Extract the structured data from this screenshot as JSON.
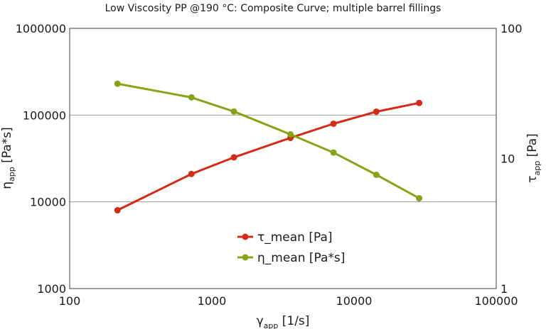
{
  "chart_data": {
    "type": "line",
    "title": "Low Viscosity PP @190 °C: Composite Curve; multiple barrel fillings",
    "x_label": {
      "symbol": "γ",
      "subscript": "app",
      "unit": " [1/s]"
    },
    "y_left_label": {
      "symbol": "η",
      "subscript": "app",
      "unit": " [Pa*s]"
    },
    "y_right_label": {
      "symbol": "τ",
      "subscript": "app",
      "unit": " [Pa]"
    },
    "x_scale": "log",
    "y_left_scale": "log",
    "y_right_scale": "log",
    "xlim": [
      100,
      100000
    ],
    "y_left_lim": [
      1000,
      1000000
    ],
    "y_right_lim": [
      1,
      100
    ],
    "x_ticks": [
      "100",
      "1000",
      "10000",
      "100000"
    ],
    "y_left_ticks": [
      "1000",
      "10000",
      "100000",
      "1000000"
    ],
    "y_right_ticks": [
      "1",
      "10",
      "100"
    ],
    "grid": "horizontal",
    "legend_position": "center-bottom",
    "series": [
      {
        "name": "τ_mean [Pa]",
        "axis": "right",
        "color": "#d42a16",
        "x": [
          217,
          718,
          1430,
          3570,
          7170,
          14350,
          28700
        ],
        "y": [
          4.0,
          7.6,
          10.2,
          14.4,
          18.5,
          22.9,
          26.7
        ]
      },
      {
        "name": "η_mean [Pa*s]",
        "axis": "left",
        "color": "#86a516",
        "x": [
          217,
          718,
          1430,
          3570,
          7170,
          14350,
          28700
        ],
        "y": [
          230000,
          160000,
          110000,
          60000,
          37000,
          20500,
          11000
        ]
      }
    ]
  }
}
